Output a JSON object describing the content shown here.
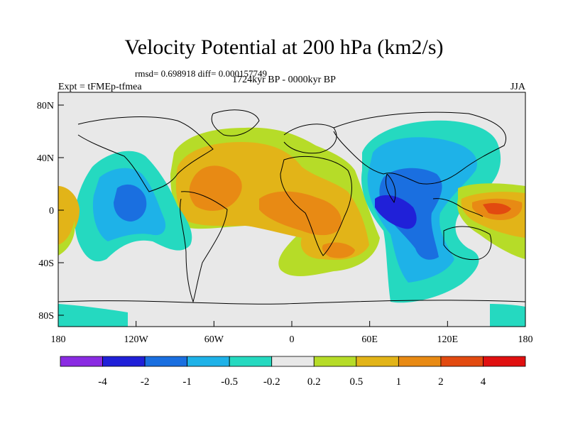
{
  "title": "Velocity Potential at 200 hPa (km2/s)",
  "stats": "rmsd= 0.698918 diff= 0.000157749",
  "experiment": "Expt = tFMEp-tfmea",
  "period": "1724kyr BP - 0000kyr BP",
  "season": "JJA",
  "map": {
    "lat_ticks": [
      "80N",
      "40N",
      "0",
      "40S",
      "80S"
    ],
    "lon_ticks": [
      "180",
      "120W",
      "60W",
      "0",
      "60E",
      "120E",
      "180"
    ]
  },
  "colorbar": {
    "colors": [
      "#8a2be2",
      "#2020d8",
      "#1a6fe0",
      "#1eb2e8",
      "#25d9c0",
      "#e8e8e8",
      "#b6dc28",
      "#e2b418",
      "#e88a14",
      "#e24a10",
      "#e01010"
    ],
    "labels": [
      "-4",
      "-2",
      "-1",
      "-0.5",
      "-0.2",
      "0.2",
      "0.5",
      "1",
      "2",
      "4"
    ]
  }
}
